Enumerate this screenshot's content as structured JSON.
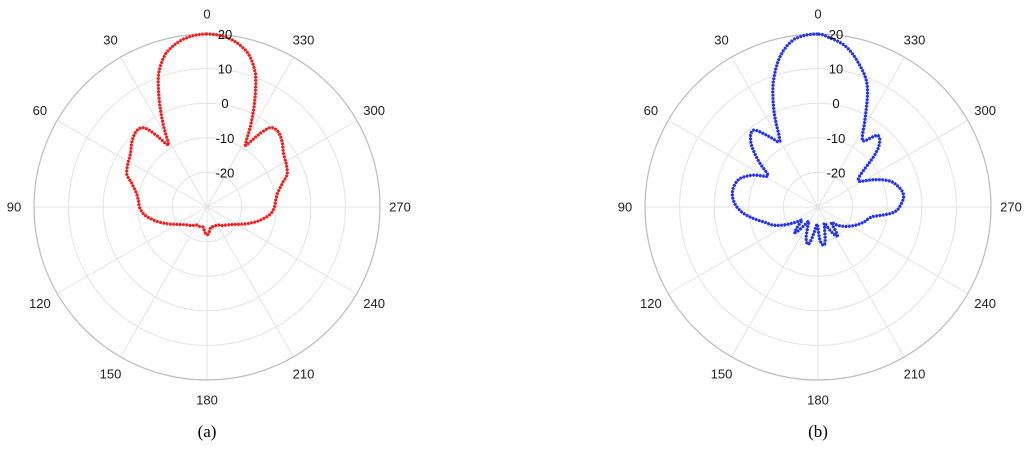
{
  "chart_data": [
    {
      "type": "polar",
      "caption": "(a)",
      "color": "#ee1c1c",
      "direction": "counterclockwise",
      "zero_location": "top",
      "angle_ticks": [
        0,
        30,
        60,
        90,
        120,
        150,
        180,
        210,
        240,
        270,
        300,
        330
      ],
      "angle_tick_labels": [
        "0",
        "30",
        "60",
        "90",
        "120",
        "150",
        "180",
        "210",
        "240",
        "270",
        "300",
        "330"
      ],
      "r_ticks": [
        -20,
        -10,
        0,
        10,
        20
      ],
      "r_tick_labels": [
        "-20",
        "-10",
        "0",
        "10",
        "20"
      ],
      "rlim": [
        -30,
        20
      ],
      "grid": true,
      "series": [
        {
          "theta_deg": [
            0,
            8,
            15,
            20,
            24,
            28,
            32,
            35,
            38,
            42,
            48,
            55,
            62,
            68,
            72,
            78,
            84,
            90,
            96,
            102,
            110,
            120,
            130,
            140,
            150,
            160,
            170,
            176,
            180,
            184,
            190,
            200,
            210,
            220,
            230,
            240,
            250,
            258,
            264,
            270,
            276,
            282,
            288,
            292,
            298,
            305,
            312,
            318,
            322,
            325,
            328,
            332,
            336,
            340,
            345,
            352,
            360
          ],
          "r_db": [
            20,
            19,
            16,
            11,
            4,
            -3,
            -9,
            -5,
            -1,
            0,
            -1,
            -3,
            -4,
            -5,
            -7,
            -9,
            -10,
            -10.5,
            -11.5,
            -13.5,
            -16.5,
            -20,
            -22,
            -23,
            -24,
            -24,
            -24,
            -22.5,
            -22,
            -22.5,
            -24,
            -24,
            -24,
            -23,
            -22,
            -20,
            -16.5,
            -13.5,
            -11.5,
            -10.5,
            -10,
            -9,
            -7,
            -5,
            -4,
            -3,
            -1,
            0,
            -1,
            -5,
            -9,
            -3,
            4,
            11,
            16,
            19,
            20
          ]
        }
      ]
    },
    {
      "type": "polar",
      "caption": "(b)",
      "color": "#1f2ef0",
      "direction": "counterclockwise",
      "zero_location": "top",
      "angle_ticks": [
        0,
        30,
        60,
        90,
        120,
        150,
        180,
        210,
        240,
        270,
        300,
        330
      ],
      "angle_tick_labels": [
        "0",
        "30",
        "60",
        "90",
        "120",
        "150",
        "180",
        "210",
        "240",
        "270",
        "300",
        "330"
      ],
      "r_ticks": [
        -20,
        -10,
        0,
        10,
        20
      ],
      "r_tick_labels": [
        "-20",
        "-10",
        "0",
        "10",
        "20"
      ],
      "rlim": [
        -30,
        20
      ],
      "grid": true,
      "series": [
        {
          "theta_deg": [
            0,
            8,
            14,
            20,
            25,
            30,
            35,
            40,
            46,
            52,
            58,
            64,
            70,
            76,
            82,
            88,
            94,
            100,
            106,
            112,
            118,
            124,
            130,
            138,
            146,
            154,
            160,
            166,
            172,
            178,
            184,
            190,
            196,
            202,
            208,
            214,
            220,
            228,
            236,
            244,
            252,
            260,
            266,
            272,
            278,
            284,
            290,
            296,
            302,
            308,
            314,
            320,
            326,
            332,
            338,
            344,
            350,
            356,
            360
          ],
          "r_db": [
            20,
            19,
            15,
            8,
            0,
            -8,
            -5,
            -1,
            -3,
            -8,
            -13,
            -9,
            -6,
            -5,
            -5,
            -6,
            -8,
            -11,
            -14,
            -16,
            -19,
            -22,
            -24,
            -20,
            -25,
            -23,
            -20,
            -19,
            -23,
            -25,
            -20,
            -19,
            -23,
            -25,
            -22,
            -20,
            -24,
            -22,
            -20,
            -18,
            -16,
            -14,
            -8,
            -6,
            -5,
            -6,
            -8,
            -12,
            -16,
            -14,
            -6,
            -3,
            -7,
            -1,
            8,
            13,
            17,
            19,
            20
          ]
        }
      ]
    }
  ]
}
